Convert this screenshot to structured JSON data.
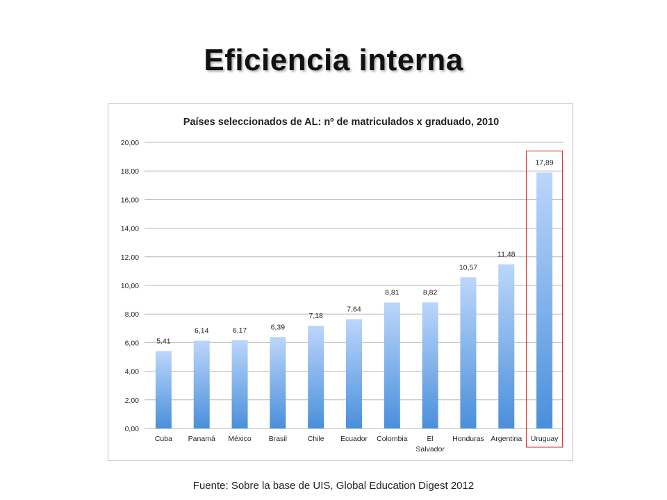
{
  "slide": {
    "title": "Eficiencia interna",
    "source": "Fuente: Sobre la base de UIS, Global Education Digest 2012"
  },
  "chart_data": {
    "type": "bar",
    "title": "Países seleccionados de AL: nº de matriculados x graduado, 2010",
    "xlabel": "",
    "ylabel": "",
    "ylim": [
      0,
      20
    ],
    "yticks": [
      0,
      2,
      4,
      6,
      8,
      10,
      12,
      14,
      16,
      18,
      20
    ],
    "ytick_labels": [
      "0,00",
      "2,00",
      "4,00",
      "6,00",
      "8,00",
      "10,00",
      "12,00",
      "14,00",
      "16,00",
      "18,00",
      "20,00"
    ],
    "grid": true,
    "categories": [
      "Cuba",
      "Panamá",
      "México",
      "Brasil",
      "Chile",
      "Ecuador",
      "Colombia",
      "El Salvador",
      "Honduras",
      "Argentina",
      "Uruguay"
    ],
    "category_lines": [
      [
        "Cuba"
      ],
      [
        "Panamá"
      ],
      [
        "México"
      ],
      [
        "Brasil"
      ],
      [
        "Chile"
      ],
      [
        "Ecuador"
      ],
      [
        "Colombia"
      ],
      [
        "El",
        "Salvador"
      ],
      [
        "Honduras"
      ],
      [
        "Argentina"
      ],
      [
        "Uruguay"
      ]
    ],
    "values": [
      5.41,
      6.14,
      6.17,
      6.39,
      7.18,
      7.64,
      8.81,
      8.82,
      10.57,
      11.48,
      17.89
    ],
    "value_labels": [
      "5,41",
      "6,14",
      "6,17",
      "6,39",
      "7,18",
      "7,64",
      "8,81",
      "8,82",
      "10,57",
      "11,48",
      "17,89"
    ],
    "highlighted_category": "Uruguay",
    "colors": {
      "bar_top": "#bcd6fb",
      "bar_bottom": "#4a8fdb",
      "grid": "#b5b5b5",
      "highlight_box": "#e0201b"
    }
  }
}
